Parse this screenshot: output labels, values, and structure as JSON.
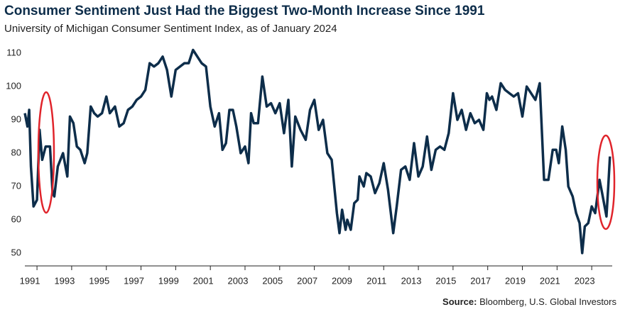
{
  "chart_data": {
    "type": "line",
    "title": "Consumer Sentiment Just Had the Biggest Two-Month Increase Since 1991",
    "subtitle": "University of Michigan Consumer Sentiment Index, as of January 2024",
    "source_label": "Source:",
    "source": "Bloomberg, U.S. Global Investors",
    "color": "#0d2d4a",
    "x": [
      1990.3,
      1990.45,
      1990.55,
      1990.65,
      1990.8,
      1991.0,
      1991.15,
      1991.3,
      1991.5,
      1991.75,
      1991.9,
      1992.0,
      1992.2,
      1992.5,
      1992.75,
      1992.9,
      1993.1,
      1993.3,
      1993.5,
      1993.75,
      1993.9,
      1994.1,
      1994.3,
      1994.5,
      1994.75,
      1995.0,
      1995.2,
      1995.5,
      1995.75,
      1996.0,
      1996.25,
      1996.5,
      1996.75,
      1997.0,
      1997.25,
      1997.5,
      1997.75,
      1998.0,
      1998.25,
      1998.5,
      1998.75,
      1999.0,
      1999.25,
      1999.5,
      1999.75,
      2000.0,
      2000.25,
      2000.5,
      2000.75,
      2001.0,
      2001.25,
      2001.5,
      2001.7,
      2001.9,
      2002.1,
      2002.3,
      2002.5,
      2002.75,
      2003.0,
      2003.2,
      2003.35,
      2003.5,
      2003.75,
      2004.0,
      2004.25,
      2004.5,
      2004.75,
      2005.0,
      2005.25,
      2005.5,
      2005.7,
      2005.9,
      2006.2,
      2006.5,
      2006.75,
      2007.0,
      2007.25,
      2007.5,
      2007.75,
      2008.0,
      2008.3,
      2008.45,
      2008.6,
      2008.8,
      2008.9,
      2009.1,
      2009.3,
      2009.5,
      2009.6,
      2009.85,
      2010.0,
      2010.25,
      2010.5,
      2010.75,
      2011.0,
      2011.25,
      2011.55,
      2011.75,
      2012.0,
      2012.25,
      2012.5,
      2012.75,
      2013.0,
      2013.25,
      2013.5,
      2013.75,
      2014.0,
      2014.25,
      2014.5,
      2014.75,
      2015.0,
      2015.25,
      2015.5,
      2015.75,
      2016.0,
      2016.25,
      2016.5,
      2016.75,
      2016.95,
      2017.1,
      2017.25,
      2017.5,
      2017.75,
      2018.0,
      2018.25,
      2018.5,
      2018.75,
      2019.0,
      2019.25,
      2019.5,
      2019.75,
      2020.0,
      2020.25,
      2020.5,
      2020.75,
      2020.95,
      2021.1,
      2021.3,
      2021.5,
      2021.65,
      2021.9,
      2022.1,
      2022.3,
      2022.45,
      2022.6,
      2022.8,
      2023.0,
      2023.2,
      2023.45,
      2023.6,
      2023.85,
      2023.95,
      2024.05
    ],
    "values": [
      92,
      88,
      93,
      76,
      64,
      66,
      87,
      78,
      82,
      82,
      68,
      67,
      76,
      80,
      73,
      91,
      89,
      82,
      81,
      77,
      80,
      94,
      92,
      91,
      92,
      97,
      92,
      94,
      88,
      89,
      93,
      94,
      96,
      97,
      99,
      107,
      106,
      107,
      109,
      105,
      97,
      105,
      106,
      107,
      107,
      111,
      109,
      107,
      106,
      94,
      88,
      92,
      81,
      83,
      93,
      93,
      88,
      80,
      82,
      77,
      92,
      89,
      89,
      103,
      94,
      95,
      92,
      95,
      86,
      96,
      76,
      91,
      87,
      84,
      93,
      96,
      87,
      90,
      80,
      78,
      62,
      56,
      63,
      57,
      60,
      57,
      65,
      66,
      73,
      70,
      74,
      73,
      68,
      71,
      77,
      69,
      56,
      64,
      75,
      76,
      72,
      83,
      73,
      76,
      85,
      75,
      81,
      82,
      81,
      86,
      98,
      90,
      93,
      87,
      92,
      89,
      90,
      87,
      98,
      96,
      97,
      93,
      101,
      99,
      98,
      97,
      98,
      91,
      100,
      98,
      96,
      101,
      72,
      72,
      81,
      81,
      77,
      88,
      81,
      70,
      67,
      62,
      59,
      50,
      58,
      59,
      64,
      62,
      72,
      68,
      61,
      69.7,
      79
    ],
    "xlim": [
      1990.3,
      2024.1
    ],
    "xticks": [
      1991,
      1993,
      1995,
      1997,
      1999,
      2001,
      2003,
      2005,
      2007,
      2009,
      2011,
      2013,
      2015,
      2017,
      2019,
      2021,
      2023
    ],
    "ylim": [
      47,
      113
    ],
    "yticks": [
      50,
      60,
      70,
      80,
      90,
      100,
      110
    ]
  }
}
